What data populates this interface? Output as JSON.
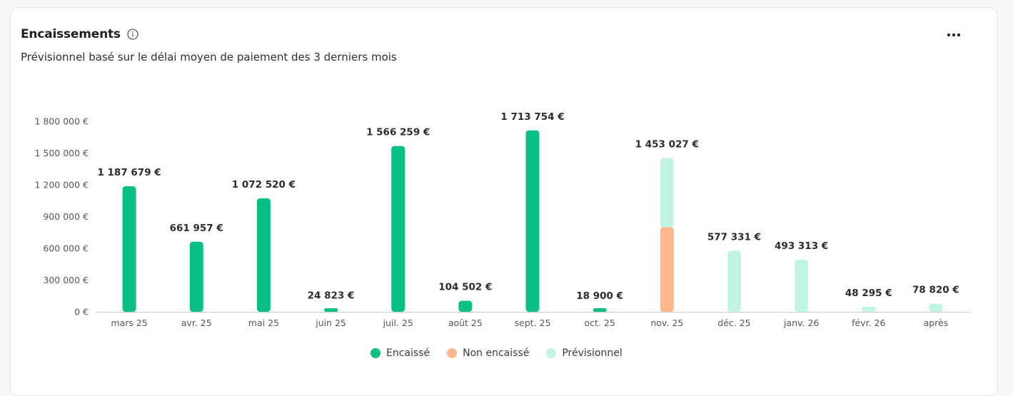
{
  "header": {
    "title": "Encaissements",
    "subtitle": "Prévisionnel basé sur le délai moyen de paiement des 3 derniers mois"
  },
  "icons": {
    "info": "info-icon",
    "more": "more-horizontal-icon"
  },
  "colors": {
    "encaisse": "#0abf85",
    "non_encaisse": "#fdb68e",
    "previsionnel": "#c2f5e1",
    "axis": "#c9cacf",
    "tick_text": "#55575e",
    "value_text": "#2b2c31"
  },
  "chart_data": {
    "type": "bar",
    "stacked": true,
    "categories": [
      "mars 25",
      "avr. 25",
      "mai 25",
      "juin 25",
      "juil. 25",
      "août 25",
      "sept. 25",
      "oct. 25",
      "nov. 25",
      "déc. 25",
      "janv. 26",
      "févr. 26",
      "après"
    ],
    "series": [
      {
        "name": "Encaissé",
        "color": "#0abf85",
        "values": [
          1187679,
          661957,
          1072520,
          24823,
          1566259,
          104502,
          1713754,
          18900,
          0,
          0,
          0,
          0,
          0
        ]
      },
      {
        "name": "Non encaissé",
        "color": "#fdb68e",
        "values": [
          0,
          0,
          0,
          0,
          0,
          0,
          0,
          0,
          800000,
          0,
          0,
          0,
          0
        ]
      },
      {
        "name": "Prévisionnel",
        "color": "#c2f5e1",
        "values": [
          0,
          0,
          0,
          0,
          0,
          0,
          0,
          0,
          653027,
          577331,
          493313,
          48295,
          78820
        ]
      }
    ],
    "data_labels": [
      "1 187 679 €",
      "661 957 €",
      "1 072 520 €",
      "24 823 €",
      "1 566 259 €",
      "104 502 €",
      "1 713 754 €",
      "18 900 €",
      "1 453 027 €",
      "577 331 €",
      "493 313 €",
      "48 295 €",
      "78 820 €"
    ],
    "yticks": [
      0,
      300000,
      600000,
      900000,
      1200000,
      1500000,
      1800000
    ],
    "ytick_labels": [
      "0 €",
      "300 000 €",
      "600 000 €",
      "900 000 €",
      "1 200 000 €",
      "1 500 000 €",
      "1 800 000 €"
    ],
    "ylim": [
      0,
      1800000
    ],
    "grid": false,
    "legend_position": "bottom-center"
  }
}
